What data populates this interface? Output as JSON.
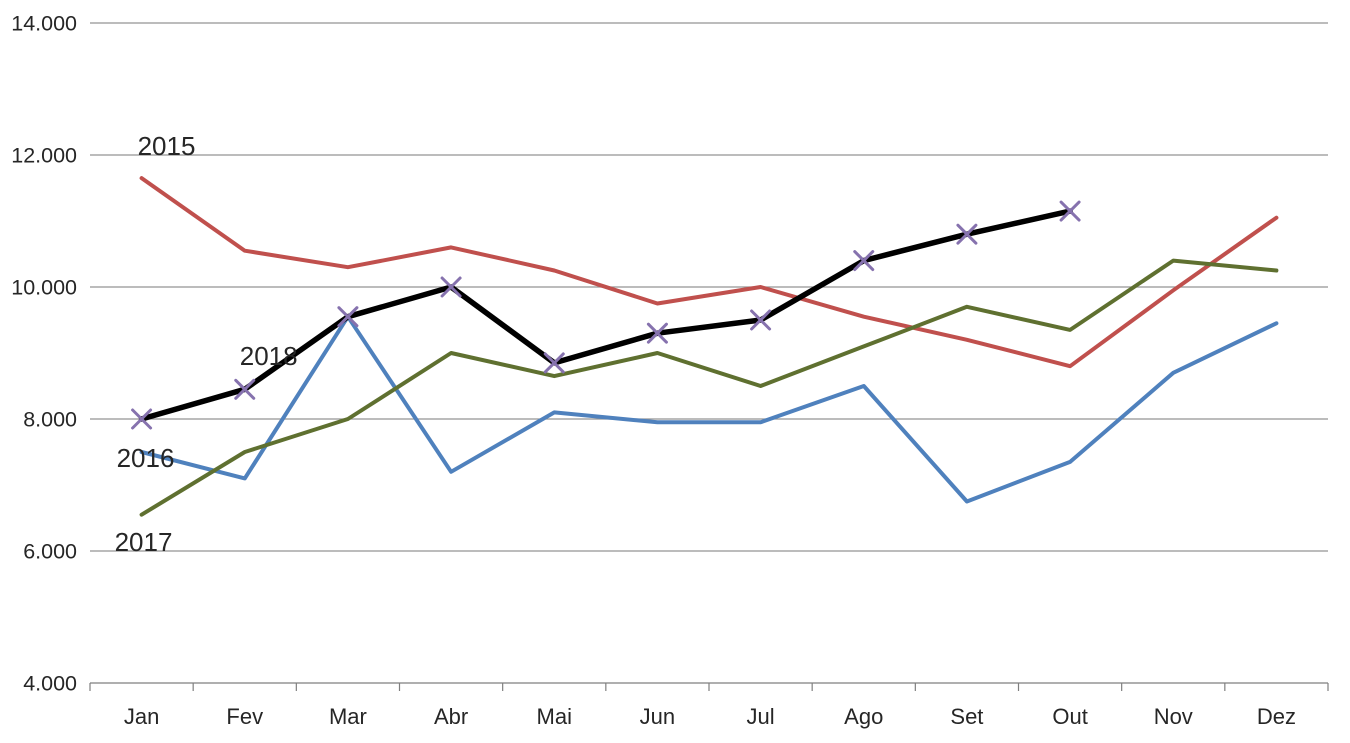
{
  "chart_data": {
    "type": "line",
    "title": "",
    "xlabel": "",
    "ylabel": "",
    "categories": [
      "Jan",
      "Fev",
      "Mar",
      "Abr",
      "Mai",
      "Jun",
      "Jul",
      "Ago",
      "Set",
      "Out",
      "Nov",
      "Dez"
    ],
    "series": [
      {
        "name": "2015",
        "color": "#C0504D",
        "line_width": 4,
        "marker": "none",
        "values": [
          11650,
          10550,
          10300,
          10600,
          10250,
          9750,
          10000,
          9550,
          9200,
          8800,
          9950,
          11050
        ]
      },
      {
        "name": "2016",
        "color": "#4F81BD",
        "line_width": 4,
        "marker": "none",
        "values": [
          7500,
          7100,
          9550,
          7200,
          8100,
          7950,
          7950,
          8500,
          6750,
          7350,
          8700,
          9450
        ]
      },
      {
        "name": "2017",
        "color": "#5F7030",
        "line_width": 4,
        "marker": "none",
        "values": [
          6550,
          7500,
          8000,
          9000,
          8650,
          9000,
          8500,
          9100,
          9700,
          9350,
          10400,
          10250
        ]
      },
      {
        "name": "2018",
        "color": "#000000",
        "line_width": 5.5,
        "marker": "x",
        "marker_color": "#8672AE",
        "marker_size": 9,
        "values": [
          8000,
          8450,
          9550,
          10000,
          8850,
          9300,
          9500,
          10400,
          10800,
          11150,
          null,
          null
        ]
      }
    ],
    "ylim": [
      4000,
      14000
    ],
    "y_ticks": [
      {
        "value": 4000,
        "label": "4.000"
      },
      {
        "value": 6000,
        "label": "6.000"
      },
      {
        "value": 8000,
        "label": "8.000"
      },
      {
        "value": 10000,
        "label": "10.000"
      },
      {
        "value": 12000,
        "label": "12.000"
      },
      {
        "value": 14000,
        "label": "14.000"
      }
    ],
    "grid": "horizontal",
    "legend_position": "none",
    "series_labels": [
      {
        "text": "2015",
        "month_index": 0,
        "value": 12000,
        "dx": -4
      },
      {
        "text": "2018",
        "month_index": 1,
        "value": 8820,
        "dx": -5
      },
      {
        "text": "2016",
        "month_index": 0,
        "value": 7270,
        "dx": -25
      },
      {
        "text": "2017",
        "month_index": 0,
        "value": 6000,
        "dx": -27
      }
    ],
    "colors": {
      "gridline": "#959595",
      "axis": "#7F7F7F",
      "text": "#262626"
    }
  }
}
